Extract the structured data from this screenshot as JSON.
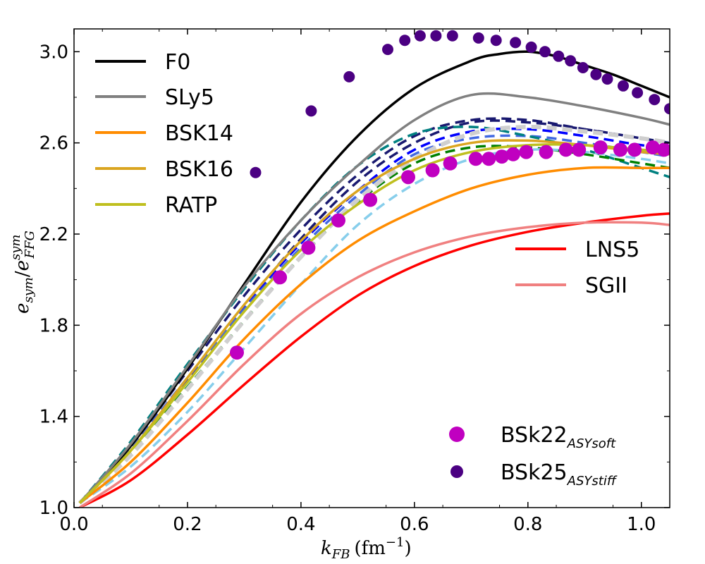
{
  "chart_data": {
    "type": "line",
    "xlabel": {
      "main": "k",
      "sub": "FB",
      "unit": "(fm",
      "exp": "−1",
      "close": ")"
    },
    "ylabel": {
      "main1": "e",
      "sub1": "sym",
      "slash": "/",
      "main2": "e",
      "sup2": "sym",
      "sub2": "FFG"
    },
    "xlim": [
      0.0,
      1.05
    ],
    "ylim": [
      1.0,
      3.1
    ],
    "xticks": [
      0.0,
      0.2,
      0.4,
      0.6,
      0.8,
      1.0
    ],
    "xtick_labels": [
      "0.0",
      "0.2",
      "0.4",
      "0.6",
      "0.8",
      "1.0"
    ],
    "yticks": [
      1.0,
      1.4,
      1.8,
      2.2,
      2.6,
      3.0
    ],
    "ytick_labels": [
      "1.0",
      "1.4",
      "1.8",
      "2.2",
      "2.6",
      "3.0"
    ],
    "legend_top_left": [
      {
        "name": "F0",
        "color": "#000000"
      },
      {
        "name": "SLy5",
        "color": "#808080"
      },
      {
        "name": "BSK14",
        "color": "#ff8c00"
      },
      {
        "name": "BSK16",
        "color": "#daa520"
      },
      {
        "name": "RATP",
        "color": "#bfbf1f"
      }
    ],
    "legend_right": [
      {
        "name": "LNS5",
        "color": "#ff0000"
      },
      {
        "name": "SGII",
        "color": "#f08080"
      }
    ],
    "legend_bottom_right": [
      {
        "main": "BSk22",
        "sub": "ASYsoft",
        "color": "#c000c0"
      },
      {
        "main": "BSk25",
        "sub": "ASYstiff",
        "color": "#4b0082"
      }
    ],
    "series_solid": [
      {
        "name": "F0",
        "color": "#000000",
        "x": [
          0.01,
          0.1,
          0.2,
          0.3,
          0.4,
          0.5,
          0.6,
          0.7,
          0.75,
          0.8,
          0.85,
          0.9,
          0.95,
          1.0,
          1.05
        ],
        "y": [
          1.02,
          1.27,
          1.61,
          1.98,
          2.34,
          2.63,
          2.84,
          2.96,
          2.99,
          3.0,
          2.98,
          2.94,
          2.9,
          2.85,
          2.8
        ]
      },
      {
        "name": "SLy5",
        "color": "#808080",
        "x": [
          0.01,
          0.1,
          0.2,
          0.3,
          0.4,
          0.5,
          0.6,
          0.7,
          0.8,
          0.9,
          1.0,
          1.05
        ],
        "y": [
          1.02,
          1.28,
          1.62,
          1.97,
          2.26,
          2.5,
          2.7,
          2.81,
          2.8,
          2.76,
          2.71,
          2.68
        ]
      },
      {
        "name": "BSK14",
        "color": "#ff8c00",
        "x": [
          0.01,
          0.1,
          0.2,
          0.3,
          0.4,
          0.5,
          0.6,
          0.7,
          0.8,
          0.9,
          1.0,
          1.05
        ],
        "y": [
          1.02,
          1.2,
          1.46,
          1.74,
          1.98,
          2.17,
          2.3,
          2.4,
          2.46,
          2.49,
          2.49,
          2.49
        ]
      },
      {
        "name": "BSK16",
        "color": "#daa520",
        "x": [
          0.01,
          0.1,
          0.2,
          0.3,
          0.4,
          0.5,
          0.6,
          0.7,
          0.8,
          0.9,
          1.0,
          1.05
        ],
        "y": [
          1.02,
          1.25,
          1.57,
          1.89,
          2.17,
          2.39,
          2.53,
          2.6,
          2.61,
          2.59,
          2.56,
          2.55
        ]
      },
      {
        "name": "RATP",
        "color": "#bfbf1f",
        "x": [
          0.01,
          0.1,
          0.2,
          0.3,
          0.4,
          0.5,
          0.6,
          0.7,
          0.8,
          0.9,
          1.0,
          1.05
        ],
        "y": [
          1.02,
          1.25,
          1.55,
          1.86,
          2.13,
          2.33,
          2.48,
          2.56,
          2.59,
          2.59,
          2.57,
          2.56
        ]
      },
      {
        "name": "LNS5",
        "color": "#ff0000",
        "x": [
          0.01,
          0.1,
          0.2,
          0.3,
          0.4,
          0.5,
          0.6,
          0.7,
          0.8,
          0.9,
          1.0,
          1.05
        ],
        "y": [
          1.0,
          1.12,
          1.32,
          1.54,
          1.75,
          1.93,
          2.06,
          2.15,
          2.21,
          2.25,
          2.28,
          2.29
        ]
      },
      {
        "name": "SGII",
        "color": "#f08080",
        "x": [
          0.01,
          0.1,
          0.2,
          0.3,
          0.4,
          0.5,
          0.6,
          0.7,
          0.8,
          0.9,
          1.0,
          1.05
        ],
        "y": [
          1.0,
          1.15,
          1.38,
          1.63,
          1.85,
          2.01,
          2.12,
          2.19,
          2.23,
          2.25,
          2.25,
          2.24
        ]
      }
    ],
    "series_dashed": [
      {
        "name": "dashed-navy-1",
        "color": "#191970",
        "x": [
          0.01,
          0.1,
          0.2,
          0.3,
          0.4,
          0.5,
          0.6,
          0.7,
          0.8,
          0.9,
          1.0,
          1.05
        ],
        "y": [
          1.02,
          1.27,
          1.6,
          1.93,
          2.22,
          2.46,
          2.63,
          2.7,
          2.7,
          2.66,
          2.62,
          2.6
        ]
      },
      {
        "name": "dashed-navy-2",
        "color": "#191970",
        "x": [
          0.01,
          0.1,
          0.2,
          0.3,
          0.4,
          0.5,
          0.6,
          0.7,
          0.8,
          0.9,
          1.0,
          1.05
        ],
        "y": [
          1.02,
          1.25,
          1.56,
          1.88,
          2.18,
          2.43,
          2.6,
          2.69,
          2.69,
          2.66,
          2.62,
          2.6
        ]
      },
      {
        "name": "dashed-blue",
        "color": "#0000ff",
        "x": [
          0.01,
          0.1,
          0.2,
          0.3,
          0.4,
          0.5,
          0.6,
          0.7,
          0.8,
          0.9,
          1.0,
          1.05
        ],
        "y": [
          1.02,
          1.25,
          1.56,
          1.88,
          2.16,
          2.39,
          2.57,
          2.65,
          2.66,
          2.63,
          2.59,
          2.58
        ]
      },
      {
        "name": "dashed-royalblue",
        "color": "#4169e1",
        "x": [
          0.01,
          0.1,
          0.2,
          0.3,
          0.4,
          0.5,
          0.6,
          0.7,
          0.8,
          0.9,
          1.0,
          1.05
        ],
        "y": [
          1.02,
          1.26,
          1.57,
          1.87,
          2.14,
          2.37,
          2.55,
          2.62,
          2.63,
          2.6,
          2.56,
          2.54
        ]
      },
      {
        "name": "dashed-teal",
        "color": "#008080",
        "x": [
          0.01,
          0.1,
          0.2,
          0.3,
          0.4,
          0.5,
          0.6,
          0.7,
          0.8,
          0.9,
          1.0,
          1.05
        ],
        "y": [
          1.02,
          1.29,
          1.63,
          1.96,
          2.26,
          2.5,
          2.64,
          2.67,
          2.63,
          2.57,
          2.49,
          2.45
        ]
      },
      {
        "name": "dashed-green",
        "color": "#008000",
        "x": [
          0.01,
          0.1,
          0.2,
          0.3,
          0.4,
          0.5,
          0.6,
          0.7,
          0.8,
          0.9,
          1.0,
          1.05
        ],
        "y": [
          1.02,
          1.24,
          1.53,
          1.82,
          2.1,
          2.34,
          2.51,
          2.58,
          2.58,
          2.55,
          2.51,
          2.49
        ]
      },
      {
        "name": "dashed-lightgray",
        "color": "#cfcfcf",
        "x": [
          0.01,
          0.1,
          0.2,
          0.3,
          0.4,
          0.5,
          0.6,
          0.7,
          0.8,
          0.9,
          1.0,
          1.05
        ],
        "y": [
          1.02,
          1.23,
          1.52,
          1.82,
          2.1,
          2.35,
          2.53,
          2.64,
          2.67,
          2.65,
          2.62,
          2.6
        ]
      },
      {
        "name": "dashed-skyblue",
        "color": "#87ceeb",
        "x": [
          0.01,
          0.1,
          0.2,
          0.3,
          0.4,
          0.5,
          0.6,
          0.7,
          0.8,
          0.9,
          1.0,
          1.05
        ],
        "y": [
          1.02,
          1.18,
          1.42,
          1.7,
          1.98,
          2.24,
          2.42,
          2.53,
          2.57,
          2.56,
          2.53,
          2.51
        ]
      }
    ],
    "scatter": [
      {
        "name": "BSk22",
        "color": "#c000c0",
        "r": 10,
        "x": [
          0.287,
          0.363,
          0.413,
          0.466,
          0.522,
          0.589,
          0.632,
          0.663,
          0.708,
          0.731,
          0.754,
          0.774,
          0.797,
          0.832,
          0.867,
          0.89,
          0.928,
          0.963,
          0.988,
          1.02,
          1.04
        ],
        "y": [
          1.68,
          2.01,
          2.14,
          2.26,
          2.35,
          2.45,
          2.48,
          2.51,
          2.53,
          2.53,
          2.54,
          2.55,
          2.56,
          2.56,
          2.57,
          2.57,
          2.58,
          2.57,
          2.57,
          2.58,
          2.57
        ]
      },
      {
        "name": "BSk25",
        "color": "#4b0082",
        "r": 8,
        "x": [
          0.32,
          0.418,
          0.485,
          0.553,
          0.583,
          0.61,
          0.638,
          0.667,
          0.713,
          0.744,
          0.778,
          0.806,
          0.83,
          0.854,
          0.875,
          0.897,
          0.92,
          0.94,
          0.968,
          0.993,
          1.023,
          1.05
        ],
        "y": [
          2.47,
          2.74,
          2.89,
          3.01,
          3.05,
          3.07,
          3.07,
          3.07,
          3.06,
          3.05,
          3.04,
          3.02,
          3.0,
          2.98,
          2.96,
          2.93,
          2.9,
          2.88,
          2.85,
          2.82,
          2.79,
          2.75
        ]
      }
    ]
  }
}
